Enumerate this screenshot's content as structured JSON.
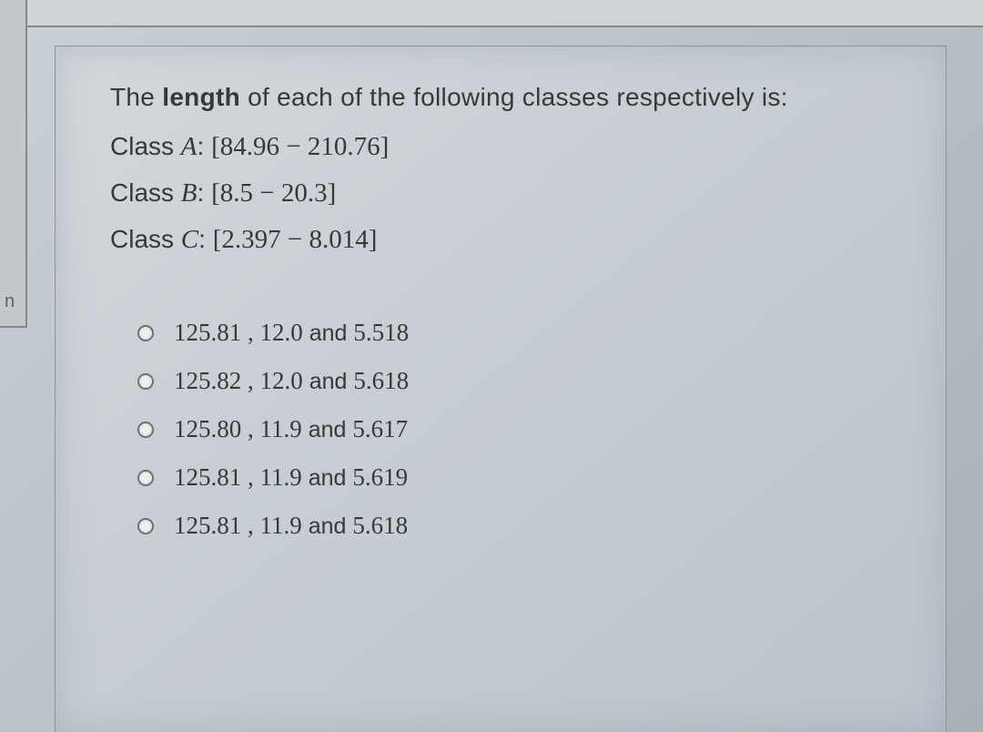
{
  "leftTab": {
    "label": "n"
  },
  "question": {
    "prompt_pre": "The ",
    "prompt_bold": "length",
    "prompt_post": " of each of the following classes respectively is:",
    "classes": [
      {
        "label": "Class ",
        "letter": "A",
        "sep": ": ",
        "range": "[84.96 − 210.76]"
      },
      {
        "label": "Class ",
        "letter": "B",
        "sep": ": ",
        "range": "[8.5 − 20.3]"
      },
      {
        "label": "Class ",
        "letter": "C",
        "sep": ": ",
        "range": "[2.397 − 8.014]"
      }
    ]
  },
  "options": [
    {
      "nums_a": "125.81 , 12.0",
      "and": " and ",
      "nums_b": "5.518"
    },
    {
      "nums_a": "125.82 , 12.0",
      "and": " and ",
      "nums_b": "5.618"
    },
    {
      "nums_a": "125.80 , 11.9",
      "and": " and ",
      "nums_b": "5.617"
    },
    {
      "nums_a": "125.81 , 11.9",
      "and": " and ",
      "nums_b": "5.619"
    },
    {
      "nums_a": "125.81 , 11.9",
      "and": " and ",
      "nums_b": "5.618"
    }
  ],
  "colors": {
    "text": "#383838",
    "panel_bg": "#cdd3d9",
    "body_bg": "#bfc6cd",
    "border": "#909498",
    "radio_border": "#707070"
  }
}
